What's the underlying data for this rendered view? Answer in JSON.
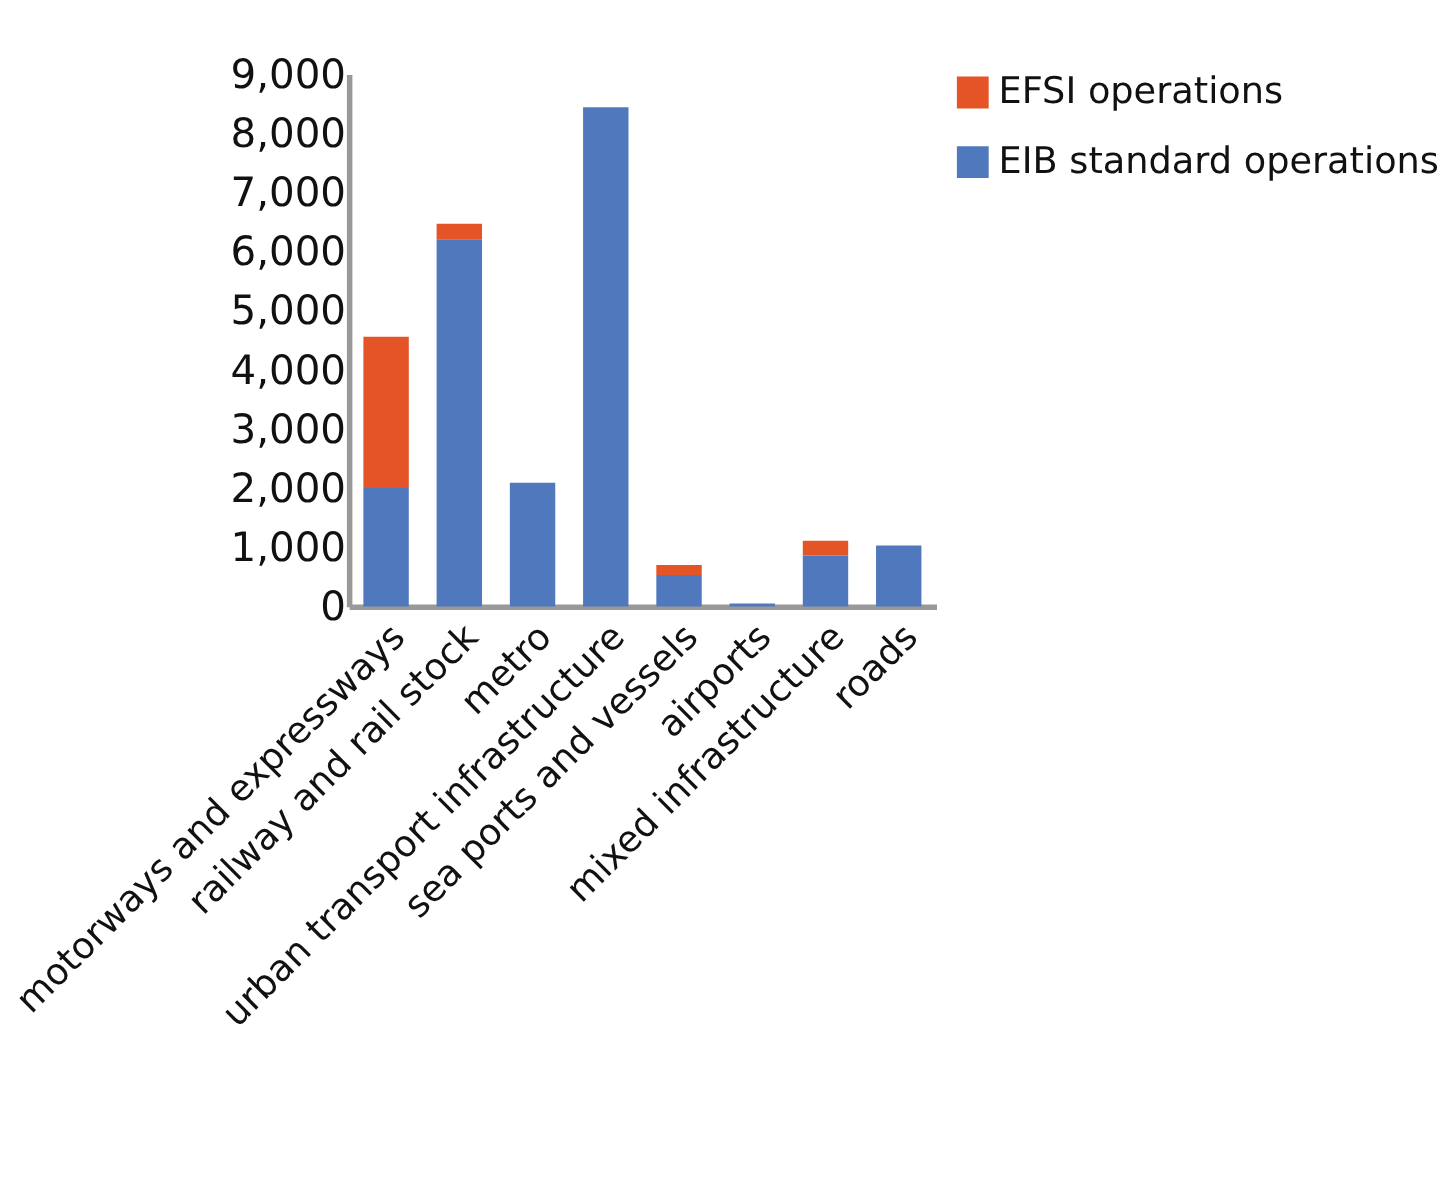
{
  "chart_data": {
    "type": "bar",
    "stacked": true,
    "categories": [
      "motorways and expressways",
      "railway and rail stock",
      "metro",
      "urban transport infrastructure",
      "sea ports and vessels",
      "airports",
      "mixed infrastructure",
      "roads"
    ],
    "series": [
      {
        "name": "EIB standard operations",
        "color": "#4f78bd",
        "values": [
          2000,
          6210,
          2090,
          8440,
          530,
          50,
          860,
          1030
        ]
      },
      {
        "name": "EFSI operations",
        "color": "#e55427",
        "values": [
          2560,
          260,
          0,
          0,
          170,
          0,
          250,
          0
        ]
      }
    ],
    "ylim": [
      0,
      9000
    ],
    "yticks": [
      0,
      {
        "value": 1000,
        "label": "1,000"
      },
      {
        "value": 2000,
        "label": "2,000"
      },
      {
        "value": 3000,
        "label": "3,000"
      },
      {
        "value": 4000,
        "label": "4,000"
      },
      {
        "value": 5000,
        "label": "5,000"
      },
      {
        "value": 6000,
        "label": "6,000"
      },
      {
        "value": 7000,
        "label": "7,000"
      },
      {
        "value": 8000,
        "label": "8,000"
      },
      {
        "value": 9000,
        "label": "9,000"
      }
    ],
    "grid": false,
    "legend": "top right"
  }
}
